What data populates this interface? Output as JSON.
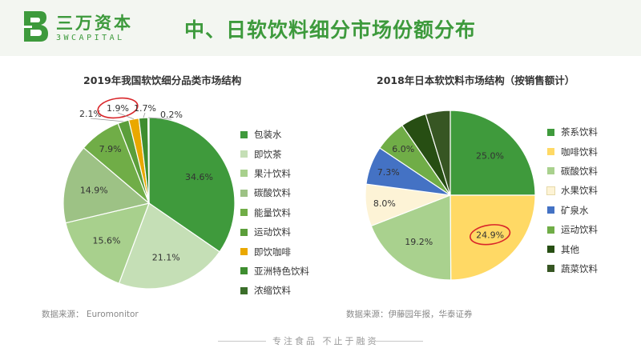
{
  "header": {
    "brand_cn": "三万资本",
    "brand_en": "3WCAPITAL",
    "title": "中、日软饮料细分市场份额分布"
  },
  "colors": {
    "brand": "#3d9a3c",
    "highlight_circle": "#d9262a"
  },
  "chart_data": [
    {
      "type": "pie",
      "title": "2019年我国软饮细分品类市场结构",
      "categories": [
        "包装水",
        "即饮茶",
        "果汁饮料",
        "碳酸饮料",
        "能量饮料",
        "运动饮料",
        "即饮咖啡",
        "亚洲特色饮料",
        "浓缩饮料"
      ],
      "values": [
        34.6,
        21.1,
        15.6,
        14.9,
        7.9,
        2.1,
        1.9,
        1.7,
        0.2
      ],
      "labels": [
        "34.6%",
        "21.1%",
        "15.6%",
        "14.9%",
        "7.9%",
        "2.1%",
        "1.9%",
        "1.7%",
        "0.2%"
      ],
      "colors": [
        "#3f9a3c",
        "#c5dfb6",
        "#a8d08d",
        "#9dc285",
        "#70ad47",
        "#5b9e3a",
        "#eaa800",
        "#3e8d2f",
        "#3b6e2a"
      ],
      "legend": "right",
      "highlighted_label": "1.9%",
      "source": "数据来源：   Euromonitor"
    },
    {
      "type": "pie",
      "title": "2018年日本软饮料市场结构（按销售额计）",
      "categories": [
        "茶系饮料",
        "咖啡饮料",
        "碳酸饮料",
        "水果饮料",
        "矿泉水",
        "运动饮料",
        "其他",
        "蔬菜饮料"
      ],
      "values": [
        25.0,
        24.9,
        19.2,
        8.0,
        7.3,
        6.0,
        4.9,
        4.7
      ],
      "labels": [
        "25.0%",
        "24.9%",
        "19.2%",
        "8.0%",
        "7.3%",
        "6.0%",
        "",
        ""
      ],
      "colors": [
        "#3f9a3c",
        "#ffd965",
        "#a9d18e",
        "#fdf3d6",
        "#4472c4",
        "#70ad47",
        "#274e13",
        "#375623"
      ],
      "legend": "right",
      "highlighted_label": "24.9%",
      "source": "数据来源：伊藤园年报，华泰证券"
    }
  ],
  "footer": {
    "slogan": "专注食品  不止于融资"
  }
}
